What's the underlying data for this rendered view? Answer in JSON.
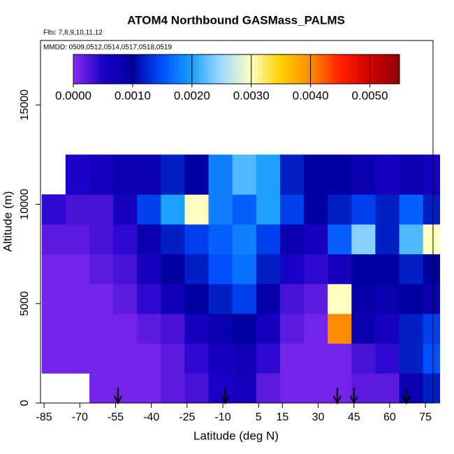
{
  "chart_data": {
    "type": "heatmap",
    "title": "ATOM4 Northbound GASMass_PALMS",
    "subtitle": "Flts: 7,8,9,10,11,12",
    "annotation": "MMDD: 0509,0512,0514,0517,0518,0519",
    "x_label": "Latitude (deg N)",
    "y_label": "Altitude (m)",
    "xlim": [
      -86.5,
      78.2
    ],
    "ylim": [
      0,
      18240
    ],
    "xticks": [
      -85,
      -70,
      -55,
      -40,
      -25,
      -10,
      5,
      15,
      30,
      45,
      60,
      75
    ],
    "yticks": [
      0,
      5000,
      10000,
      15000
    ],
    "clim": [
      0,
      0.0055
    ],
    "cticks": [
      {
        "value": 0,
        "label": "0.0000"
      },
      {
        "value": 0.001,
        "label": "0.0010"
      },
      {
        "value": 0.002,
        "label": "0.0020"
      },
      {
        "value": 0.003,
        "label": "0.0030"
      },
      {
        "value": 0.004,
        "label": "0.0040"
      },
      {
        "value": 0.005,
        "label": "0.0050"
      }
    ],
    "colormap": [
      "#8a2cf0",
      "#1a00c8",
      "#0000a0",
      "#0050ff",
      "#1aa0ff",
      "#a0dcff",
      "#ffffc0",
      "#ffd000",
      "#ff8c00",
      "#ff2000",
      "#d00000",
      "#900000"
    ],
    "x_edges": [
      -86,
      -76,
      -66,
      -56,
      -46,
      -36,
      -26,
      -16,
      -6,
      4,
      14,
      24,
      34,
      44,
      54,
      64,
      74,
      81
    ],
    "y_edges": [
      0,
      1500,
      3000,
      4500,
      6000,
      7500,
      9000,
      10500,
      12500
    ],
    "values": [
      [
        null,
        null,
        0.0001,
        0.0001,
        0.0001,
        0.0002,
        0.0003,
        0.0005,
        0.0006,
        0.0002,
        0.0001,
        0.0001,
        0.0001,
        0.0002,
        0.0002,
        0.0008,
        0.0012
      ],
      [
        0.0001,
        0.0001,
        0.0001,
        0.0001,
        0.0001,
        0.0002,
        0.0004,
        0.0006,
        0.0007,
        0.0004,
        0.0001,
        0.0001,
        0.0001,
        0.0003,
        0.0004,
        0.0012,
        0.0015
      ],
      [
        0.0001,
        0.0001,
        0.0001,
        0.0001,
        0.0002,
        0.0003,
        0.0006,
        0.0008,
        0.001,
        0.0006,
        0.0002,
        0.0001,
        0.004,
        0.0008,
        0.0006,
        0.0012,
        0.0014
      ],
      [
        0.0001,
        0.0001,
        0.0001,
        0.0002,
        0.0004,
        0.0007,
        0.001,
        0.0012,
        0.0014,
        0.0009,
        0.0003,
        0.0002,
        0.003,
        0.0009,
        0.0008,
        0.001,
        0.0008
      ],
      [
        0.0001,
        0.0001,
        0.0002,
        0.0003,
        0.0006,
        0.001,
        0.0012,
        0.0015,
        0.0017,
        0.0012,
        0.0005,
        0.0004,
        0.0006,
        0.001,
        0.001,
        0.0012,
        0.001
      ],
      [
        0.0002,
        0.0002,
        0.0003,
        0.0004,
        0.0008,
        0.0012,
        0.0014,
        0.0016,
        0.0018,
        0.0014,
        0.0008,
        0.0006,
        0.0016,
        0.0024,
        0.0012,
        0.0022,
        0.003
      ],
      [
        0.0004,
        0.0003,
        0.0003,
        0.0006,
        0.0014,
        0.002,
        0.003,
        0.0018,
        0.0016,
        0.002,
        0.0014,
        0.001,
        0.0012,
        0.0014,
        0.0012,
        0.0016,
        0.0012
      ],
      [
        null,
        0.0005,
        0.0006,
        0.0008,
        0.0008,
        0.0012,
        0.001,
        0.0018,
        0.0022,
        0.002,
        0.0012,
        0.001,
        0.001,
        0.0008,
        0.0006,
        0.0008,
        0.0006
      ]
    ],
    "arrows": [
      -54,
      -9,
      38,
      45,
      67
    ]
  }
}
